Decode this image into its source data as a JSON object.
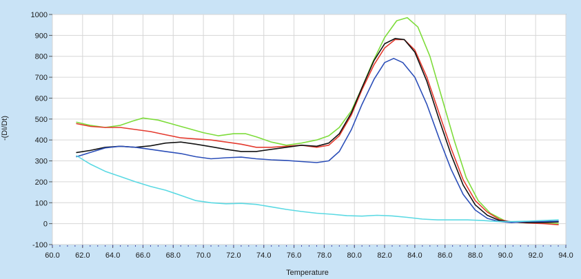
{
  "chart_data": {
    "type": "line",
    "title": "",
    "xlabel": "Temperature",
    "ylabel": "-(DI/Dt)",
    "xlim": [
      60.0,
      94.0
    ],
    "ylim": [
      -100,
      1000
    ],
    "x_ticks": [
      "60.0",
      "62.0",
      "64.0",
      "66.0",
      "68.0",
      "70.0",
      "72.0",
      "74.0",
      "76.0",
      "78.0",
      "80.0",
      "82.0",
      "84.0",
      "86.0",
      "88.0",
      "90.0",
      "92.0",
      "94.0"
    ],
    "y_ticks": [
      "1000",
      "900",
      "800",
      "700",
      "600",
      "500",
      "400",
      "300",
      "200",
      "100",
      "0",
      "-100"
    ],
    "grid": true,
    "legend": "none",
    "series": [
      {
        "color": "#7ddc3a",
        "points": [
          [
            61.6,
            485
          ],
          [
            62.5,
            470
          ],
          [
            63.5,
            460
          ],
          [
            64.5,
            470
          ],
          [
            65.3,
            490
          ],
          [
            66.0,
            505
          ],
          [
            67.0,
            495
          ],
          [
            68.0,
            475
          ],
          [
            69.0,
            455
          ],
          [
            70.0,
            435
          ],
          [
            71.0,
            420
          ],
          [
            72.0,
            430
          ],
          [
            72.8,
            430
          ],
          [
            73.5,
            415
          ],
          [
            74.5,
            390
          ],
          [
            75.5,
            375
          ],
          [
            76.5,
            385
          ],
          [
            77.5,
            400
          ],
          [
            78.3,
            420
          ],
          [
            79.0,
            460
          ],
          [
            79.8,
            540
          ],
          [
            80.5,
            650
          ],
          [
            81.2,
            770
          ],
          [
            82.0,
            890
          ],
          [
            82.8,
            970
          ],
          [
            83.5,
            985
          ],
          [
            84.2,
            940
          ],
          [
            85.0,
            800
          ],
          [
            85.8,
            600
          ],
          [
            86.6,
            400
          ],
          [
            87.4,
            220
          ],
          [
            88.2,
            110
          ],
          [
            89.0,
            50
          ],
          [
            90.0,
            12
          ],
          [
            91.0,
            5
          ],
          [
            92.0,
            2
          ],
          [
            93.0,
            0
          ],
          [
            93.5,
            0
          ]
        ]
      },
      {
        "color": "#e43a2e",
        "points": [
          [
            61.6,
            478
          ],
          [
            62.5,
            465
          ],
          [
            63.5,
            460
          ],
          [
            64.5,
            460
          ],
          [
            65.5,
            450
          ],
          [
            66.5,
            440
          ],
          [
            67.5,
            425
          ],
          [
            68.5,
            410
          ],
          [
            69.5,
            405
          ],
          [
            70.5,
            400
          ],
          [
            71.5,
            390
          ],
          [
            72.5,
            380
          ],
          [
            73.5,
            365
          ],
          [
            74.5,
            365
          ],
          [
            75.5,
            370
          ],
          [
            76.5,
            375
          ],
          [
            77.5,
            365
          ],
          [
            78.3,
            375
          ],
          [
            79.0,
            420
          ],
          [
            79.8,
            520
          ],
          [
            80.5,
            640
          ],
          [
            81.3,
            760
          ],
          [
            82.0,
            840
          ],
          [
            82.7,
            880
          ],
          [
            83.3,
            880
          ],
          [
            84.0,
            830
          ],
          [
            84.8,
            700
          ],
          [
            85.6,
            530
          ],
          [
            86.4,
            360
          ],
          [
            87.2,
            210
          ],
          [
            88.0,
            110
          ],
          [
            88.8,
            55
          ],
          [
            89.6,
            20
          ],
          [
            90.4,
            8
          ],
          [
            91.5,
            3
          ],
          [
            92.5,
            0
          ],
          [
            93.5,
            -5
          ]
        ]
      },
      {
        "color": "#111111",
        "points": [
          [
            61.6,
            340
          ],
          [
            62.5,
            350
          ],
          [
            63.5,
            365
          ],
          [
            64.5,
            370
          ],
          [
            65.5,
            365
          ],
          [
            66.5,
            372
          ],
          [
            67.5,
            385
          ],
          [
            68.5,
            390
          ],
          [
            69.5,
            380
          ],
          [
            70.5,
            368
          ],
          [
            71.5,
            355
          ],
          [
            72.5,
            345
          ],
          [
            73.5,
            345
          ],
          [
            74.5,
            355
          ],
          [
            75.5,
            365
          ],
          [
            76.5,
            375
          ],
          [
            77.5,
            370
          ],
          [
            78.3,
            385
          ],
          [
            79.0,
            430
          ],
          [
            79.8,
            530
          ],
          [
            80.5,
            650
          ],
          [
            81.3,
            780
          ],
          [
            82.0,
            860
          ],
          [
            82.7,
            885
          ],
          [
            83.3,
            880
          ],
          [
            84.0,
            820
          ],
          [
            84.8,
            680
          ],
          [
            85.6,
            500
          ],
          [
            86.4,
            330
          ],
          [
            87.2,
            185
          ],
          [
            88.0,
            90
          ],
          [
            88.8,
            40
          ],
          [
            89.6,
            15
          ],
          [
            90.4,
            8
          ],
          [
            91.5,
            5
          ],
          [
            92.5,
            5
          ],
          [
            93.5,
            8
          ]
        ]
      },
      {
        "color": "#2b4eb8",
        "points": [
          [
            61.6,
            320
          ],
          [
            62.5,
            340
          ],
          [
            63.5,
            362
          ],
          [
            64.5,
            370
          ],
          [
            65.5,
            365
          ],
          [
            66.5,
            355
          ],
          [
            67.5,
            345
          ],
          [
            68.5,
            335
          ],
          [
            69.5,
            320
          ],
          [
            70.5,
            310
          ],
          [
            71.5,
            315
          ],
          [
            72.5,
            318
          ],
          [
            73.5,
            310
          ],
          [
            74.5,
            305
          ],
          [
            75.5,
            302
          ],
          [
            76.5,
            297
          ],
          [
            77.5,
            292
          ],
          [
            78.3,
            300
          ],
          [
            79.0,
            345
          ],
          [
            79.8,
            450
          ],
          [
            80.5,
            570
          ],
          [
            81.3,
            690
          ],
          [
            82.0,
            770
          ],
          [
            82.6,
            790
          ],
          [
            83.2,
            770
          ],
          [
            84.0,
            700
          ],
          [
            84.8,
            570
          ],
          [
            85.6,
            410
          ],
          [
            86.4,
            260
          ],
          [
            87.2,
            140
          ],
          [
            88.0,
            65
          ],
          [
            88.8,
            25
          ],
          [
            89.6,
            10
          ],
          [
            90.4,
            5
          ],
          [
            91.5,
            10
          ],
          [
            92.5,
            10
          ],
          [
            93.5,
            12
          ]
        ]
      },
      {
        "color": "#5ad9e3",
        "points": [
          [
            61.6,
            325
          ],
          [
            62.5,
            285
          ],
          [
            63.5,
            250
          ],
          [
            64.5,
            225
          ],
          [
            65.5,
            200
          ],
          [
            66.5,
            178
          ],
          [
            67.5,
            160
          ],
          [
            68.5,
            135
          ],
          [
            69.5,
            110
          ],
          [
            70.5,
            100
          ],
          [
            71.5,
            95
          ],
          [
            72.5,
            97
          ],
          [
            73.5,
            92
          ],
          [
            74.5,
            80
          ],
          [
            75.5,
            68
          ],
          [
            76.5,
            58
          ],
          [
            77.5,
            50
          ],
          [
            78.5,
            45
          ],
          [
            79.5,
            38
          ],
          [
            80.5,
            36
          ],
          [
            81.5,
            40
          ],
          [
            82.5,
            37
          ],
          [
            83.5,
            30
          ],
          [
            84.5,
            22
          ],
          [
            85.5,
            18
          ],
          [
            86.5,
            18
          ],
          [
            87.5,
            18
          ],
          [
            88.5,
            15
          ],
          [
            89.5,
            10
          ],
          [
            90.5,
            10
          ],
          [
            91.5,
            12
          ],
          [
            92.5,
            15
          ],
          [
            93.5,
            18
          ]
        ]
      }
    ]
  }
}
